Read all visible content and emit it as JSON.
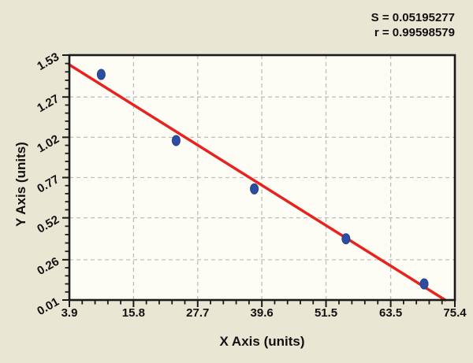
{
  "figure": {
    "colors": {
      "background": "#e9e6d3",
      "plot_background": "#fdfdf6",
      "border": "#1a1a1a",
      "gridline": "#bebebe",
      "line": "#e8231f",
      "point_fill": "#2d4da1",
      "point_stroke": "#24418f",
      "text": "#111111"
    },
    "annotations": {
      "s_label": "S = 0.05195277",
      "r_label": "r = 0.99598579"
    }
  },
  "chart_data": {
    "type": "scatter",
    "title": "",
    "xlabel": "X Axis (units)",
    "ylabel": "Y Axis (units)",
    "xlim": [
      3.9,
      75.4
    ],
    "ylim": [
      0.01,
      1.53
    ],
    "x_tick_values": [
      3.9,
      15.8,
      27.7,
      39.6,
      51.5,
      63.5,
      75.4
    ],
    "x_tick_labels": [
      "3.9",
      "15.8",
      "27.7",
      "39.6",
      "51.5",
      "63.5",
      "75.4"
    ],
    "y_tick_values": [
      0.01,
      0.26,
      0.52,
      0.77,
      1.02,
      1.27,
      1.53
    ],
    "y_tick_labels": [
      "0.01",
      "0.26",
      "0.52",
      "0.77",
      "1.02",
      "1.27",
      "1.53"
    ],
    "minor_ticks_between_majors": 4,
    "grid": {
      "shown": true,
      "style": "dashed"
    },
    "legend": null,
    "stats": {
      "S": "0.05195277",
      "r": "0.99598579"
    },
    "series": [
      {
        "name": "data-points",
        "type": "scatter",
        "color": "#2d4da1",
        "points": [
          [
            9.8,
            1.41
          ],
          [
            23.7,
            1.0
          ],
          [
            38.2,
            0.7
          ],
          [
            55.2,
            0.39
          ],
          [
            69.7,
            0.11
          ]
        ]
      },
      {
        "name": "regression-line",
        "type": "line",
        "color": "#e8231f",
        "points": [
          [
            3.9,
            1.47
          ],
          [
            73.6,
            0.01
          ]
        ]
      }
    ]
  }
}
